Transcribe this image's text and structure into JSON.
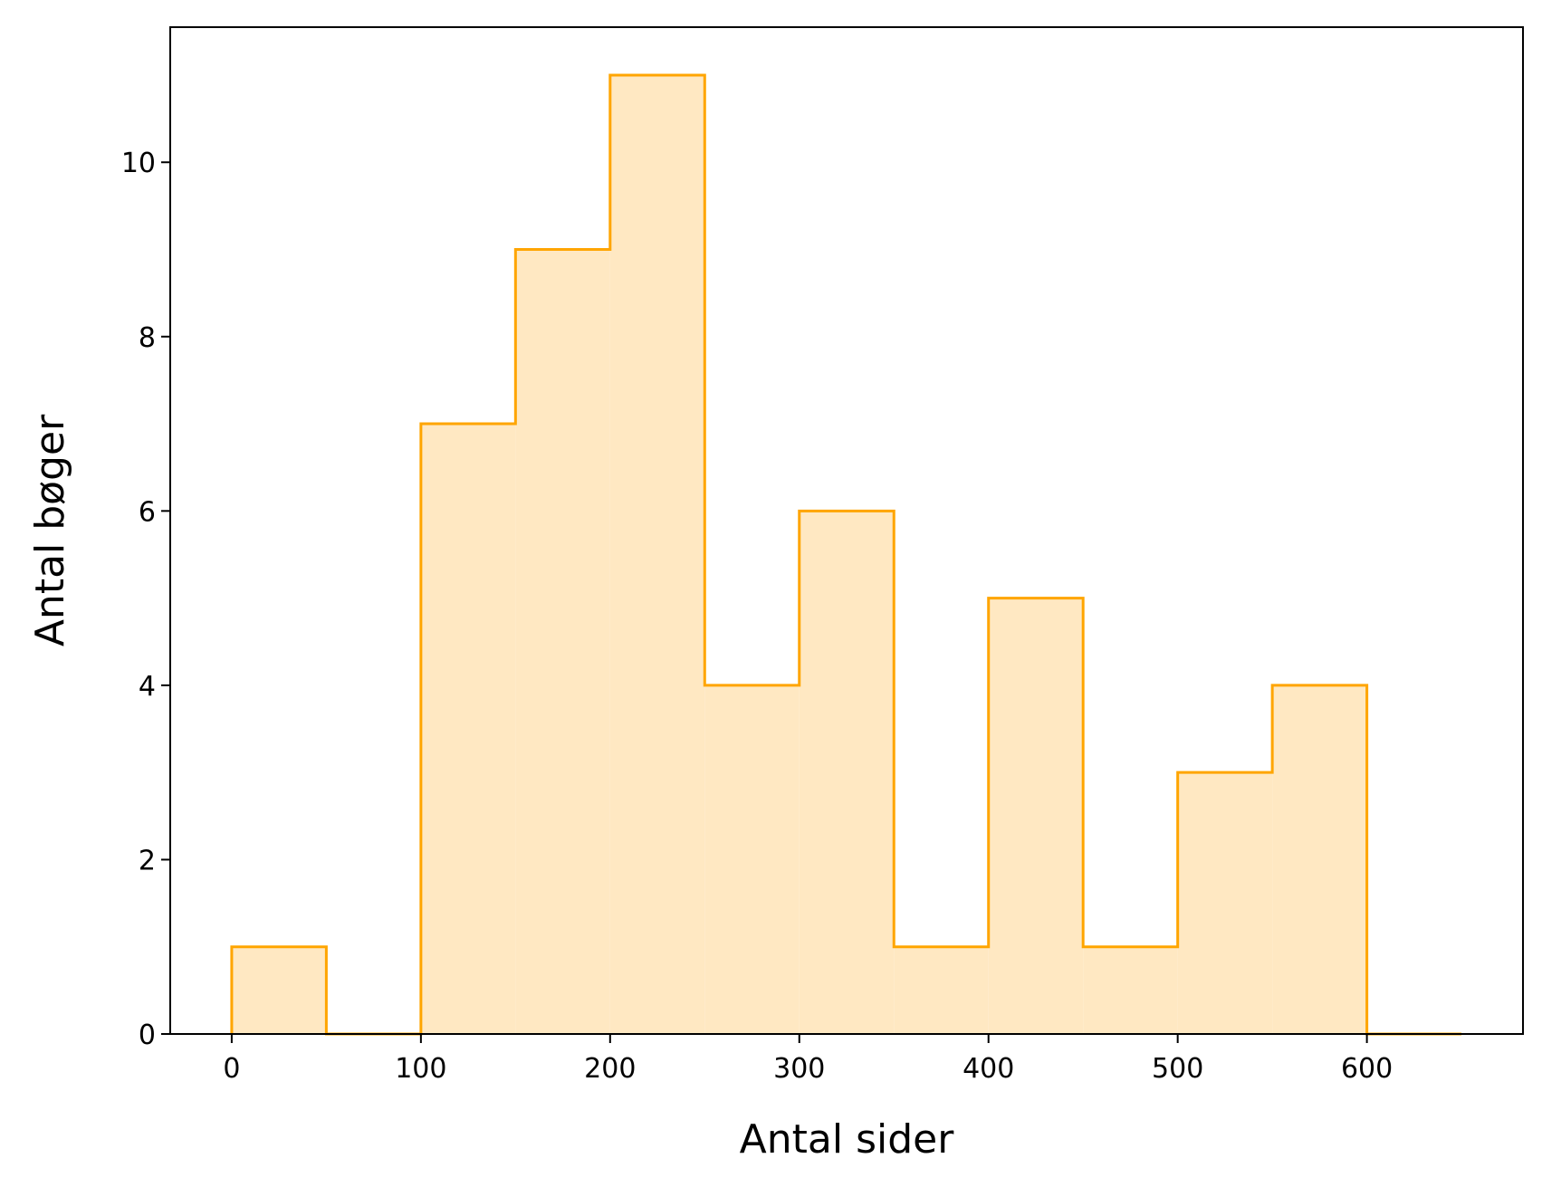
{
  "chart_data": {
    "type": "histogram",
    "title": "",
    "xlabel": "Antal sider",
    "ylabel": "Antal bøger",
    "bin_edges": [
      0,
      50,
      100,
      150,
      200,
      250,
      300,
      350,
      400,
      450,
      500,
      550,
      600,
      650
    ],
    "values": [
      1,
      0,
      7,
      9,
      11,
      4,
      6,
      1,
      5,
      1,
      3,
      4,
      0
    ],
    "xlim": [
      -32.5,
      682.5
    ],
    "ylim": [
      0,
      11.55
    ],
    "xticks": [
      0,
      100,
      200,
      300,
      400,
      500,
      600
    ],
    "yticks": [
      0,
      2,
      4,
      6,
      8,
      10
    ],
    "grid": false,
    "legend": "none",
    "colors": {
      "edge": "#FFA500",
      "fill": "#FFE8C2",
      "axes": "#000000"
    }
  }
}
